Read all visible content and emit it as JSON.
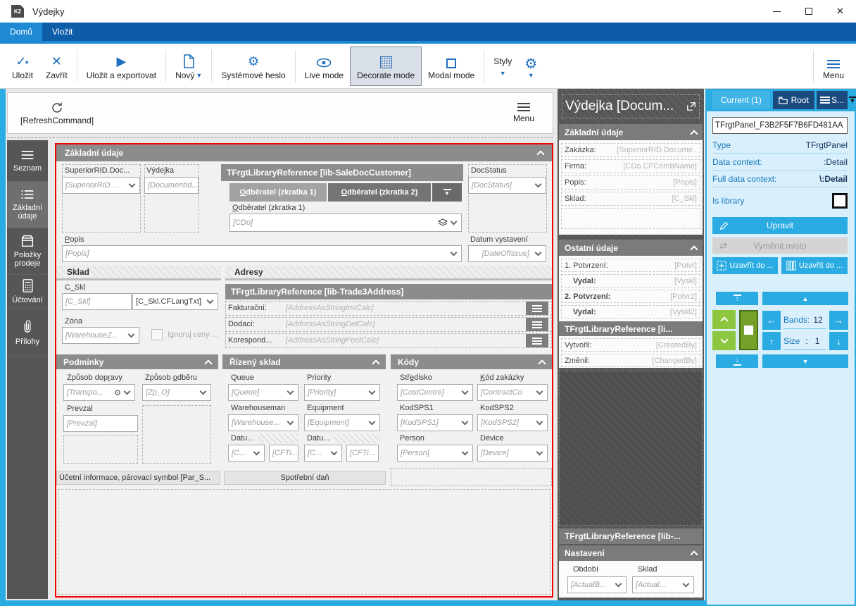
{
  "window": {
    "title": "Výdejky"
  },
  "ribbon": {
    "tabs": [
      {
        "label": "Domů"
      },
      {
        "label": "Vložit"
      }
    ]
  },
  "toolbar": {
    "save": "Uložit",
    "close": "Zavřít",
    "save_export": "Uložit a exportovat",
    "new": "Nový",
    "system_password": "Systémové heslo",
    "live_mode": "Live mode",
    "decorate_mode": "Decorate mode",
    "modal_mode": "Modal mode",
    "styles": "Styly",
    "menu": "Menu"
  },
  "refresh_bar": {
    "refresh_command": "[RefreshCommand]",
    "menu": "Menu"
  },
  "sidebar": {
    "items": [
      {
        "label": "Seznam"
      },
      {
        "label": "Základní údaje"
      },
      {
        "label": "Položky prodeje"
      },
      {
        "label": "Účtování"
      },
      {
        "label": "Přílohy"
      }
    ]
  },
  "form": {
    "header": "Základní údaje",
    "f_superior": {
      "label": "SuperiorRID.Doc...",
      "value": "[SuperiorRID...."
    },
    "f_document": {
      "label": "Výdejka",
      "value": "[DocumentId..."
    },
    "lib_customer": "TFrgtLibraryReference [lib-SaleDocCustomer]",
    "tab_customer1": "Odběratel (zkratka 1)",
    "tab_customer2": "Odběratel (zkratka 2)",
    "f_cdo": {
      "label": "Odběratel (zkratka 1)",
      "value": "[CDo]"
    },
    "f_docstatus": {
      "label": "DocStatus",
      "value": "[DocStatus]"
    },
    "f_popis": {
      "label": "Popis",
      "value": "[Popis]"
    },
    "f_dateofissue": {
      "label": "Datum vystavení",
      "value": "[DateOfIssue]"
    },
    "sub_sklad": "Sklad",
    "sub_adresy": "Adresy",
    "f_cskl": {
      "label": "C_Skl",
      "value": "[C_Skl]",
      "value2": "[C_Skl.CFLangTxt]"
    },
    "f_zona": {
      "label": "Zóna",
      "value": "[WarehouseZ..."
    },
    "chk_ignore_prices": "Ignoruj ceny ...",
    "lib_address": "TFrgtLibraryReference [lib-Trade3Address]",
    "addr_rows": [
      {
        "label": "Fakturační:",
        "value": "[AddressAsStringInvCalc]"
      },
      {
        "label": "Dodací:",
        "value": "[AddressAsStringDelCalc]"
      },
      {
        "label": "Korespond...",
        "value": "[AddressAsStringPostCalc]"
      }
    ],
    "podminky": {
      "header": "Podmínky",
      "f_doprava": {
        "label": "Způsob dopravy",
        "value": "[Transpo..."
      },
      "f_odber": {
        "label": "Způsob odběru",
        "value": "[Zp_O]"
      },
      "f_prevzal": {
        "label": "Prevzal",
        "value": "[Prevzal]"
      }
    },
    "rizeny_sklad": {
      "header": "Řízený sklad",
      "f_queue": {
        "label": "Queue",
        "value": "[Queue]"
      },
      "f_priority": {
        "label": "Priority",
        "value": "[Priority]"
      },
      "f_warehouseman": {
        "label": "Warehouseman",
        "value": "[Warehouse..."
      },
      "f_equipment": {
        "label": "Equipment",
        "value": "[Equipment]"
      },
      "f_date1": {
        "label": "Datu...",
        "value": "[C...",
        "value2": "[CFTi..."
      },
      "f_date2": {
        "label": "Datu...",
        "value": "[C...",
        "value2": "[CFTi..."
      }
    },
    "kody": {
      "header": "Kódy",
      "f_stredisko": {
        "label": "Středisko",
        "value": "[CostCentre]"
      },
      "f_kod_zakazky": {
        "label": "Kód zakázky",
        "value": "[ContractCo"
      },
      "f_kodsps1": {
        "label": "KodSPS1",
        "value": "[KodSPS1]"
      },
      "f_kodsps2": {
        "label": "KodSPS2",
        "value": "[KodSPS2]"
      },
      "f_person": {
        "label": "Person",
        "value": "[Person]"
      },
      "f_device": {
        "label": "Device",
        "value": "[Device]"
      }
    },
    "bar_ucetni": "Účetní informace, párovací symbol [Par_S...",
    "bar_spotrebni": "Spotřební daň"
  },
  "inspector": {
    "title": "Výdejka [Docum...",
    "sec_zakladni": {
      "header": "Základní údaje",
      "rows": [
        {
          "label": "Zakázka:",
          "value": "[SuperiorRID.Docume.."
        },
        {
          "label": "Firma:",
          "value": "[CDo.CFCombName]"
        },
        {
          "label": "Popis:",
          "value": "[Popis]"
        },
        {
          "label": "Sklad:",
          "value": "[C_Skl]"
        }
      ]
    },
    "sec_ostatni": {
      "header": "Ostatní údaje",
      "rows": [
        {
          "label": "1. Potvrzení:",
          "value": "[Potvr]"
        },
        {
          "label": "Vydal:",
          "value": "[Vyskl]"
        },
        {
          "label": "2. Potvrzení:",
          "value": "[Potvr2]"
        },
        {
          "label": "Vydal:",
          "value": "[Vyskl2]"
        }
      ],
      "lib": "TFrgtLibraryReference [li...",
      "rows2": [
        {
          "label": "Vytvořil:",
          "value": "[CreatedBy]"
        },
        {
          "label": "Změnil:",
          "value": "[ChangedBy]"
        }
      ]
    },
    "lib2": "TFrgtLibraryReference [lib-...",
    "sec_nastaveni": {
      "header": "Nastavení",
      "f_obdobi": {
        "label": "Období",
        "value": "[ActualB..."
      },
      "f_sklad": {
        "label": "Sklad",
        "value": "[Actual..."
      }
    }
  },
  "props": {
    "tabs": {
      "current": "Current (1)",
      "root": "Root",
      "stack": "S..."
    },
    "name_value": "TFrgtPanel_F3B2F5F7B6FD481AA",
    "r_type": {
      "label": "Type",
      "value": "TFrgtPanel"
    },
    "r_context": {
      "label": "Data context:",
      "value": ":Detail"
    },
    "r_full_context": {
      "label": "Full data context:",
      "value": "\\:Detail"
    },
    "r_is_library": {
      "label": "Is library"
    },
    "btn_upravit": "Upravit",
    "btn_vymenit": "Vyměnit místo",
    "btn_uzavrit1": "Uzavřít do ...",
    "btn_uzavrit2": "Uzavřít do ...",
    "nav": {
      "bands_label": "Bands:",
      "bands_value": "12",
      "size_label": "Size",
      "size_sep": ":",
      "size_value": "1"
    }
  },
  "colors": {
    "cyan": "#29abe2",
    "ribbon_blue": "#0d5ca8",
    "active_tab_blue": "#1e8ad3",
    "icon_blue": "#1f6ec0",
    "selection_red": "#f00000",
    "panel_gray": "#575757",
    "header_gray": "#8c8c8c",
    "green": "#8dc63f"
  }
}
